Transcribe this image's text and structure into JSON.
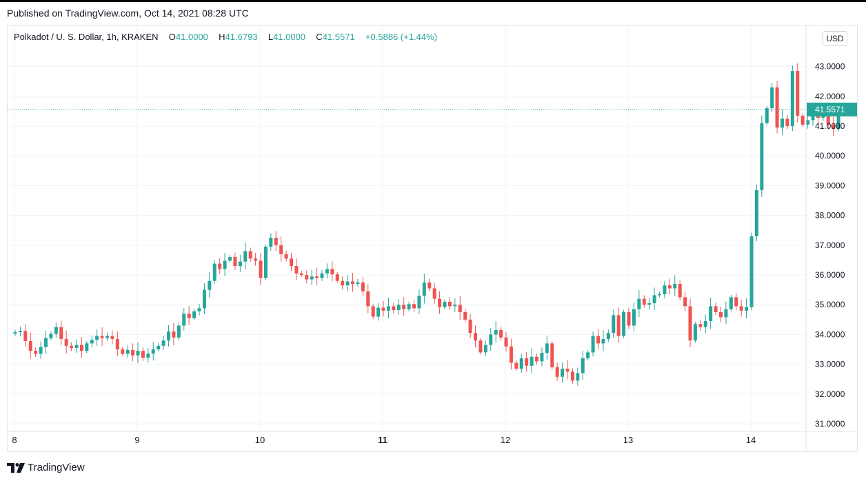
{
  "header": {
    "published": "Published on TradingView.com, Oct 14, 2021 08:28 UTC"
  },
  "legend": {
    "symbol": "Polkadot / U. S. Dollar, 1h, KRAKEN",
    "o_label": "O",
    "o_value": "41.0000",
    "h_label": "H",
    "h_value": "41.6793",
    "l_label": "L",
    "l_value": "41.0000",
    "c_label": "C",
    "c_value": "41.5571",
    "change": "+0.5886 (+1.44%)"
  },
  "currency_button": "USD",
  "footer": {
    "logo_text": "TradingView"
  },
  "colors": {
    "up": "#26a69a",
    "down": "#ef5350",
    "grid": "#f0f3fa",
    "axis_text": "#131722"
  },
  "chart_data": {
    "type": "candlestick",
    "title": "",
    "y_axis_position": "right",
    "ylim": [
      30.9,
      44.3
    ],
    "y_ticks": [
      "43.0000",
      "42.0000",
      "41.0000",
      "40.0000",
      "39.0000",
      "38.0000",
      "37.0000",
      "36.0000",
      "35.0000",
      "34.0000",
      "33.0000",
      "32.0000",
      "31.0000"
    ],
    "x_ticks": [
      {
        "label": "8",
        "day": 8,
        "bold": false
      },
      {
        "label": "9",
        "day": 9,
        "bold": false
      },
      {
        "label": "10",
        "day": 10,
        "bold": false
      },
      {
        "label": "11",
        "day": 11,
        "bold": true
      },
      {
        "label": "12",
        "day": 12,
        "bold": false
      },
      {
        "label": "13",
        "day": 13,
        "bold": false
      },
      {
        "label": "14",
        "day": 14,
        "bold": false
      }
    ],
    "last_price": "41.5571",
    "last_price_value": 41.5571,
    "grid": true,
    "interval_hours": 1,
    "start": "Oct 8 00:00",
    "closes": [
      34.08,
      34.12,
      33.78,
      33.45,
      33.35,
      33.58,
      33.88,
      34.02,
      34.25,
      33.85,
      33.62,
      33.55,
      33.65,
      33.45,
      33.7,
      33.82,
      33.95,
      33.88,
      33.95,
      33.85,
      33.5,
      33.35,
      33.48,
      33.3,
      33.45,
      33.22,
      33.36,
      33.5,
      33.62,
      33.8,
      34.1,
      33.9,
      34.3,
      34.7,
      34.55,
      34.78,
      34.88,
      35.5,
      35.8,
      36.38,
      36.2,
      36.48,
      36.6,
      36.3,
      36.45,
      36.8,
      36.55,
      36.48,
      35.9,
      36.95,
      37.25,
      37.0,
      36.7,
      36.55,
      36.3,
      36.05,
      36.0,
      35.85,
      35.95,
      35.9,
      36.05,
      36.2,
      36.02,
      35.8,
      35.65,
      35.78,
      35.7,
      35.75,
      35.45,
      34.95,
      34.6,
      34.9,
      34.8,
      34.95,
      34.82,
      35.0,
      34.85,
      35.02,
      34.88,
      35.3,
      35.75,
      35.55,
      35.2,
      34.92,
      35.1,
      34.95,
      35.0,
      34.75,
      34.5,
      34.05,
      33.8,
      33.4,
      33.65,
      34.0,
      34.15,
      33.9,
      33.6,
      33.05,
      32.85,
      33.2,
      32.95,
      33.25,
      33.1,
      33.38,
      33.7,
      32.9,
      32.58,
      32.85,
      32.75,
      32.45,
      32.7,
      33.2,
      33.4,
      33.95,
      33.7,
      33.85,
      34.05,
      34.65,
      33.95,
      34.75,
      34.3,
      34.85,
      35.2,
      35.0,
      35.05,
      35.32,
      35.35,
      35.65,
      35.55,
      35.7,
      35.25,
      34.95,
      33.8,
      34.35,
      34.25,
      34.45,
      34.95,
      34.75,
      34.58,
      34.85,
      35.25,
      34.95,
      34.8,
      34.92,
      37.3,
      38.85,
      41.1,
      41.6,
      42.3,
      40.95,
      41.25,
      41.0,
      42.85,
      41.35,
      41.05,
      41.2,
      41.45,
      41.28,
      41.35,
      41.05,
      40.9,
      41.5571
    ]
  }
}
